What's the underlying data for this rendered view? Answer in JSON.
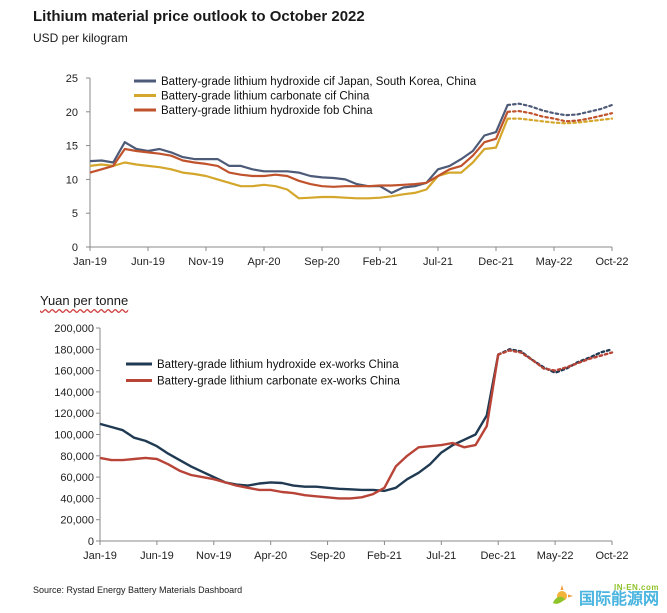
{
  "title": "Lithium material price outlook to October 2022",
  "source": "Source: Rystad Energy Battery Materials Dashboard",
  "watermark": {
    "en": "IN-EN.com",
    "cn": "国际能源网",
    "icon": "sun-leaf-logo-icon"
  },
  "chart_data": [
    {
      "type": "line",
      "ylabel": "USD per kilogram",
      "ylim": [
        0,
        25
      ],
      "yticks": [
        "0",
        "5",
        "10",
        "15",
        "20",
        "25"
      ],
      "x_tick_labels": [
        "Jan-19",
        "Jun-19",
        "Nov-19",
        "Apr-20",
        "Sep-20",
        "Feb-21",
        "Jul-21",
        "Dec-21",
        "May-22",
        "Oct-22"
      ],
      "x_range_months": [
        0,
        45
      ],
      "legend_position": "top",
      "series": [
        {
          "name": "Battery-grade lithium hydroxide cif Japan, South Korea, China",
          "color": "#4d5b78",
          "actual": [
            [
              0,
              12.7
            ],
            [
              1,
              12.8
            ],
            [
              2,
              12.5
            ],
            [
              3,
              15.5
            ],
            [
              4,
              14.5
            ],
            [
              5,
              14.2
            ],
            [
              6,
              14.5
            ],
            [
              7,
              14.0
            ],
            [
              8,
              13.3
            ],
            [
              9,
              13.0
            ],
            [
              10,
              13.0
            ],
            [
              11,
              13.0
            ],
            [
              12,
              12.0
            ],
            [
              13,
              12.0
            ],
            [
              14,
              11.5
            ],
            [
              15,
              11.2
            ],
            [
              16,
              11.2
            ],
            [
              17,
              11.2
            ],
            [
              18,
              11.0
            ],
            [
              19,
              10.5
            ],
            [
              20,
              10.3
            ],
            [
              21,
              10.2
            ],
            [
              22,
              10.0
            ],
            [
              23,
              9.3
            ],
            [
              24,
              9.0
            ],
            [
              25,
              9.0
            ],
            [
              26,
              8.0
            ],
            [
              27,
              8.8
            ],
            [
              28,
              9.0
            ],
            [
              29,
              9.5
            ],
            [
              30,
              11.5
            ],
            [
              31,
              12.0
            ],
            [
              32,
              13.0
            ],
            [
              33,
              14.2
            ],
            [
              34,
              16.5
            ],
            [
              35,
              17.0
            ],
            [
              36,
              21.0
            ]
          ],
          "forecast": [
            [
              36,
              21.0
            ],
            [
              37,
              21.2
            ],
            [
              38,
              20.8
            ],
            [
              39,
              20.2
            ],
            [
              40,
              19.8
            ],
            [
              41,
              19.5
            ],
            [
              42,
              19.6
            ],
            [
              43,
              20.0
            ],
            [
              44,
              20.4
            ],
            [
              45,
              21.0
            ]
          ]
        },
        {
          "name": "Battery-grade lithium carbonate cif China",
          "color": "#d4a72c",
          "actual": [
            [
              0,
              12.0
            ],
            [
              1,
              12.2
            ],
            [
              2,
              12.0
            ],
            [
              3,
              12.5
            ],
            [
              4,
              12.2
            ],
            [
              5,
              12.0
            ],
            [
              6,
              11.8
            ],
            [
              7,
              11.5
            ],
            [
              8,
              11.0
            ],
            [
              9,
              10.8
            ],
            [
              10,
              10.5
            ],
            [
              11,
              10.0
            ],
            [
              12,
              9.5
            ],
            [
              13,
              9.0
            ],
            [
              14,
              9.0
            ],
            [
              15,
              9.2
            ],
            [
              16,
              9.0
            ],
            [
              17,
              8.5
            ],
            [
              18,
              7.2
            ],
            [
              19,
              7.3
            ],
            [
              20,
              7.4
            ],
            [
              21,
              7.4
            ],
            [
              22,
              7.3
            ],
            [
              23,
              7.2
            ],
            [
              24,
              7.2
            ],
            [
              25,
              7.3
            ],
            [
              26,
              7.5
            ],
            [
              27,
              7.8
            ],
            [
              28,
              8.0
            ],
            [
              29,
              8.5
            ],
            [
              30,
              10.5
            ],
            [
              31,
              11.0
            ],
            [
              32,
              11.0
            ],
            [
              33,
              12.5
            ],
            [
              34,
              14.5
            ],
            [
              35,
              14.7
            ],
            [
              36,
              19.0
            ]
          ],
          "forecast": [
            [
              36,
              19.0
            ],
            [
              37,
              19.0
            ],
            [
              38,
              18.8
            ],
            [
              39,
              18.6
            ],
            [
              40,
              18.4
            ],
            [
              41,
              18.3
            ],
            [
              42,
              18.4
            ],
            [
              43,
              18.6
            ],
            [
              44,
              18.8
            ],
            [
              45,
              19.0
            ]
          ]
        },
        {
          "name": "Battery-grade lithium hydroxide fob China",
          "color": "#c0532b",
          "actual": [
            [
              0,
              11.0
            ],
            [
              1,
              11.5
            ],
            [
              2,
              12.0
            ],
            [
              3,
              14.5
            ],
            [
              4,
              14.2
            ],
            [
              5,
              14.0
            ],
            [
              6,
              13.8
            ],
            [
              7,
              13.5
            ],
            [
              8,
              12.8
            ],
            [
              9,
              12.5
            ],
            [
              10,
              12.3
            ],
            [
              11,
              12.0
            ],
            [
              12,
              11.0
            ],
            [
              13,
              10.7
            ],
            [
              14,
              10.5
            ],
            [
              15,
              10.5
            ],
            [
              16,
              10.7
            ],
            [
              17,
              10.5
            ],
            [
              18,
              9.8
            ],
            [
              19,
              9.3
            ],
            [
              20,
              9.0
            ],
            [
              21,
              8.9
            ],
            [
              22,
              9.0
            ],
            [
              23,
              9.0
            ],
            [
              24,
              9.0
            ],
            [
              25,
              9.1
            ],
            [
              26,
              9.1
            ],
            [
              27,
              9.2
            ],
            [
              28,
              9.3
            ],
            [
              29,
              9.5
            ],
            [
              30,
              10.5
            ],
            [
              31,
              11.5
            ],
            [
              32,
              12.0
            ],
            [
              33,
              13.5
            ],
            [
              34,
              15.5
            ],
            [
              35,
              16.0
            ],
            [
              36,
              20.0
            ]
          ],
          "forecast": [
            [
              36,
              20.0
            ],
            [
              37,
              20.1
            ],
            [
              38,
              19.8
            ],
            [
              39,
              19.3
            ],
            [
              40,
              19.0
            ],
            [
              41,
              18.6
            ],
            [
              42,
              18.7
            ],
            [
              43,
              19.0
            ],
            [
              44,
              19.4
            ],
            [
              45,
              19.8
            ]
          ]
        }
      ]
    },
    {
      "type": "line",
      "ylabel": "Yuan per tonne",
      "ylim": [
        0,
        200000
      ],
      "yticks": [
        "0",
        "20,000",
        "40,000",
        "60,000",
        "80,000",
        "100,000",
        "120,000",
        "140,000",
        "160,000",
        "180,000",
        "200,000"
      ],
      "x_tick_labels": [
        "Jan-19",
        "Jun-19",
        "Nov-19",
        "Apr-20",
        "Sep-20",
        "Feb-21",
        "Jul-21",
        "Dec-21",
        "May-22",
        "Oct-22"
      ],
      "x_range_months": [
        0,
        45
      ],
      "legend_position": "top",
      "series": [
        {
          "name": "Battery-grade lithium hydroxide ex-works China",
          "color": "#1f3a52",
          "actual": [
            [
              0,
              110000
            ],
            [
              1,
              107000
            ],
            [
              2,
              104000
            ],
            [
              3,
              97000
            ],
            [
              4,
              94000
            ],
            [
              5,
              89000
            ],
            [
              6,
              82000
            ],
            [
              7,
              76000
            ],
            [
              8,
              70000
            ],
            [
              9,
              65000
            ],
            [
              10,
              60000
            ],
            [
              11,
              55000
            ],
            [
              12,
              53000
            ],
            [
              13,
              52000
            ],
            [
              14,
              54000
            ],
            [
              15,
              55000
            ],
            [
              16,
              54500
            ],
            [
              17,
              52000
            ],
            [
              18,
              51000
            ],
            [
              19,
              51000
            ],
            [
              20,
              50000
            ],
            [
              21,
              49000
            ],
            [
              22,
              48500
            ],
            [
              23,
              48000
            ],
            [
              24,
              48000
            ],
            [
              25,
              47000
            ],
            [
              26,
              50000
            ],
            [
              27,
              58000
            ],
            [
              28,
              64000
            ],
            [
              29,
              72000
            ],
            [
              30,
              83000
            ],
            [
              31,
              90000
            ],
            [
              32,
              95000
            ],
            [
              33,
              100000
            ],
            [
              34,
              118000
            ],
            [
              35,
              175000
            ]
          ],
          "forecast": [
            [
              35,
              175000
            ],
            [
              36,
              180000
            ],
            [
              37,
              178000
            ],
            [
              38,
              170000
            ],
            [
              39,
              163000
            ],
            [
              40,
              158000
            ],
            [
              41,
              162000
            ],
            [
              42,
              168000
            ],
            [
              43,
              172000
            ],
            [
              44,
              177000
            ],
            [
              45,
              180000
            ]
          ]
        },
        {
          "name": "Battery-grade lithium carbonate ex-works China",
          "color": "#b84438",
          "actual": [
            [
              0,
              78000
            ],
            [
              1,
              76000
            ],
            [
              2,
              76000
            ],
            [
              3,
              77000
            ],
            [
              4,
              78000
            ],
            [
              5,
              77000
            ],
            [
              6,
              72000
            ],
            [
              7,
              66000
            ],
            [
              8,
              62000
            ],
            [
              9,
              60000
            ],
            [
              10,
              58000
            ],
            [
              11,
              55000
            ],
            [
              12,
              52000
            ],
            [
              13,
              50000
            ],
            [
              14,
              48000
            ],
            [
              15,
              48000
            ],
            [
              16,
              46000
            ],
            [
              17,
              45000
            ],
            [
              18,
              43000
            ],
            [
              19,
              42000
            ],
            [
              20,
              41000
            ],
            [
              21,
              40000
            ],
            [
              22,
              40000
            ],
            [
              23,
              41000
            ],
            [
              24,
              44000
            ],
            [
              25,
              50000
            ],
            [
              26,
              70000
            ],
            [
              27,
              80000
            ],
            [
              28,
              88000
            ],
            [
              29,
              89000
            ],
            [
              30,
              90000
            ],
            [
              31,
              92000
            ],
            [
              32,
              88000
            ],
            [
              33,
              90000
            ],
            [
              34,
              108000
            ],
            [
              35,
              175000
            ]
          ],
          "forecast": [
            [
              35,
              175000
            ],
            [
              36,
              179000
            ],
            [
              37,
              177000
            ],
            [
              38,
              170000
            ],
            [
              39,
              162000
            ],
            [
              40,
              160000
            ],
            [
              41,
              163000
            ],
            [
              42,
              167000
            ],
            [
              43,
              171000
            ],
            [
              44,
              174000
            ],
            [
              45,
              177000
            ]
          ]
        }
      ]
    }
  ]
}
